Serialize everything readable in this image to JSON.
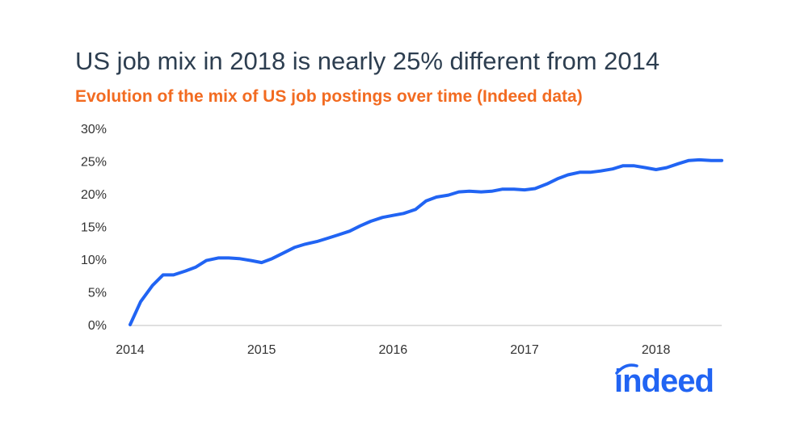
{
  "chart_data": {
    "type": "line",
    "title": "US job mix in 2018 is nearly 25% different from 2014",
    "subtitle": "Evolution of the mix of US job postings over time (Indeed data)",
    "xlabel": "",
    "ylabel": "",
    "x_ticks": [
      "2014",
      "2015",
      "2016",
      "2017",
      "2018"
    ],
    "y_ticks": [
      "0%",
      "5%",
      "10%",
      "15%",
      "20%",
      "25%",
      "30%"
    ],
    "xlim": [
      2014.0,
      2018.5
    ],
    "ylim": [
      0,
      30
    ],
    "grid": false,
    "legend": "none",
    "series": [
      {
        "color": "#2164f3",
        "x": [
          2014.0,
          2014.08,
          2014.17,
          2014.25,
          2014.33,
          2014.42,
          2014.5,
          2014.58,
          2014.67,
          2014.75,
          2014.83,
          2014.92,
          2015.0,
          2015.08,
          2015.17,
          2015.25,
          2015.33,
          2015.42,
          2015.5,
          2015.58,
          2015.67,
          2015.75,
          2015.83,
          2015.92,
          2016.0,
          2016.08,
          2016.17,
          2016.25,
          2016.33,
          2016.42,
          2016.5,
          2016.58,
          2016.67,
          2016.75,
          2016.83,
          2016.92,
          2017.0,
          2017.08,
          2017.17,
          2017.25,
          2017.33,
          2017.42,
          2017.5,
          2017.58,
          2017.67,
          2017.75,
          2017.83,
          2017.92,
          2018.0,
          2018.08,
          2018.17,
          2018.25,
          2018.33,
          2018.42,
          2018.5
        ],
        "values": [
          0.0,
          3.5,
          6.0,
          7.6,
          7.6,
          8.2,
          8.8,
          9.8,
          10.2,
          10.2,
          10.1,
          9.8,
          9.5,
          10.1,
          11.0,
          11.8,
          12.3,
          12.7,
          13.2,
          13.7,
          14.3,
          15.1,
          15.8,
          16.4,
          16.7,
          17.0,
          17.6,
          18.9,
          19.5,
          19.8,
          20.3,
          20.4,
          20.3,
          20.4,
          20.7,
          20.7,
          20.6,
          20.8,
          21.5,
          22.3,
          22.9,
          23.3,
          23.3,
          23.5,
          23.8,
          24.3,
          24.3,
          24.0,
          23.7,
          24.0,
          24.6,
          25.1,
          25.2,
          25.1,
          25.1
        ]
      }
    ]
  },
  "logo": {
    "text": "indeed",
    "color": "#2164f3"
  }
}
